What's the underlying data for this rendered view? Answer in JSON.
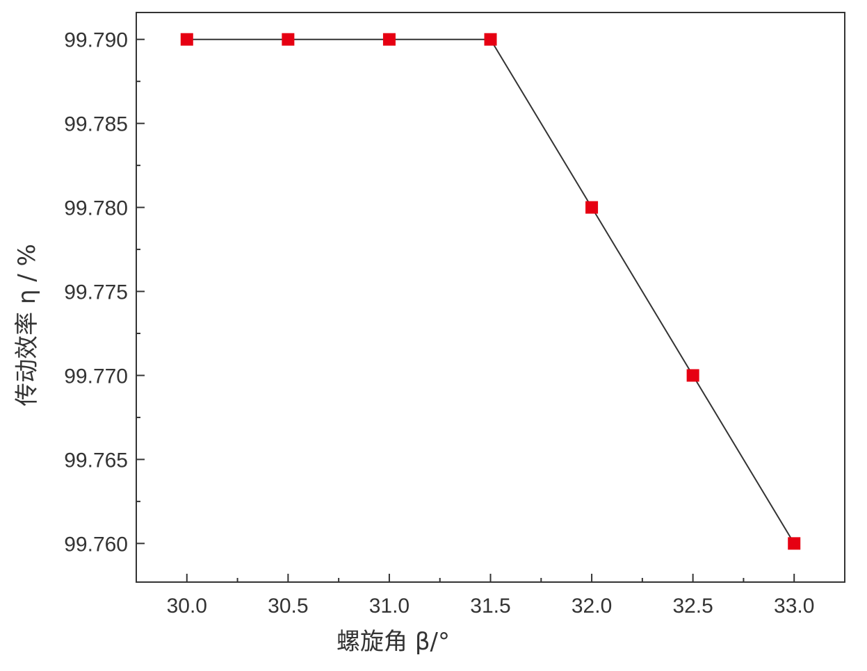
{
  "chart_data": {
    "type": "line",
    "title": "",
    "xlabel": "螺旋角 β/°",
    "ylabel": "传动效率 η / %",
    "x": [
      30.0,
      30.5,
      31.0,
      31.5,
      32.0,
      32.5,
      33.0
    ],
    "series": [
      {
        "values": [
          99.79,
          99.79,
          99.79,
          99.79,
          99.78,
          99.77,
          99.76
        ]
      }
    ],
    "xlim": [
      29.75,
      33.25
    ],
    "ylim": [
      99.7577,
      99.7916
    ],
    "x_ticks": [
      30.0,
      30.5,
      31.0,
      31.5,
      32.0,
      32.5,
      33.0
    ],
    "x_tick_labels": [
      "30.0",
      "30.5",
      "31.0",
      "31.5",
      "32.0",
      "32.5",
      "33.0"
    ],
    "y_ticks": [
      99.76,
      99.765,
      99.77,
      99.775,
      99.78,
      99.785,
      99.79
    ],
    "y_tick_labels": [
      "99.760",
      "99.765",
      "99.770",
      "99.775",
      "99.780",
      "99.785",
      "99.790"
    ],
    "grid": false,
    "legend": "none",
    "line_color": "#333333",
    "marker": "square",
    "marker_color": "#e60012"
  }
}
